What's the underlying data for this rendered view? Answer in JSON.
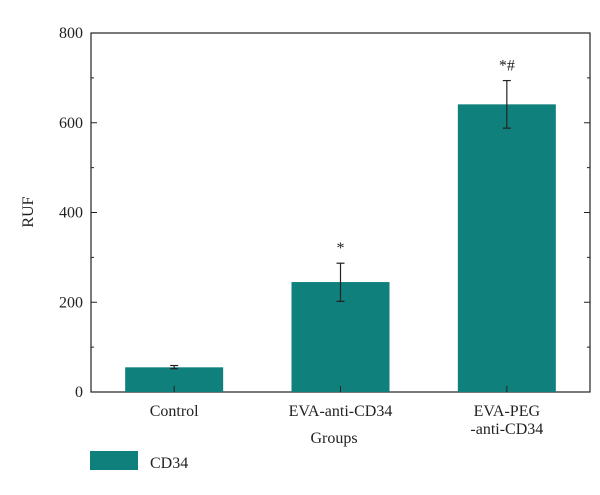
{
  "chart_data": {
    "type": "bar",
    "xlabel": "Groups",
    "ylabel": "RUF",
    "ylim": [
      0,
      800
    ],
    "yticks": [
      0,
      200,
      400,
      600,
      800
    ],
    "grid": false,
    "legend_position": "bottom-left",
    "categories": [
      [
        "Control"
      ],
      [
        "EVA-anti-CD34"
      ],
      [
        "EVA-PEG",
        "-anti-CD34"
      ]
    ],
    "series": [
      {
        "name": "CD34",
        "color": "#0f807c",
        "values": [
          55,
          245,
          641
        ],
        "error_low": [
          52,
          202,
          588
        ],
        "error_high": [
          59,
          287,
          694
        ],
        "annotations": [
          "",
          "*",
          "*#"
        ]
      }
    ]
  }
}
